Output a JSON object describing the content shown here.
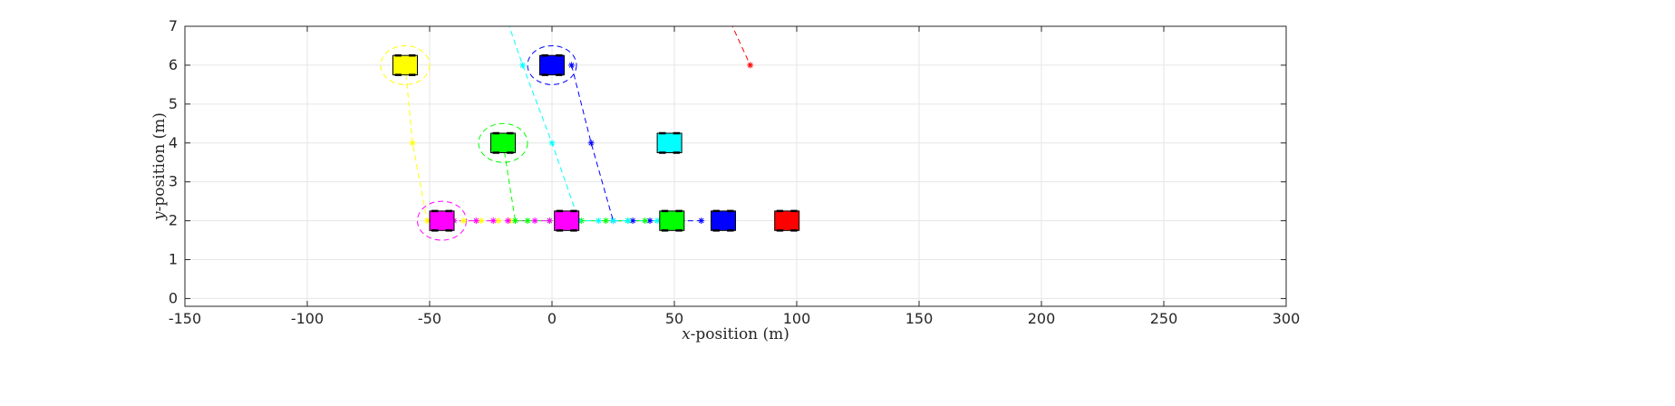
{
  "chart_data": {
    "type": "scatter",
    "title": "",
    "xlabel": {
      "var": "x",
      "rest": "-position (m)"
    },
    "ylabel": {
      "var": "y",
      "rest": "-position (m)"
    },
    "xlim": [
      -150,
      300
    ],
    "ylim": [
      -0.2,
      7
    ],
    "xticks": [
      -150,
      -100,
      -50,
      0,
      50,
      100,
      150,
      200,
      250,
      300
    ],
    "yticks": [
      0,
      1,
      2,
      3,
      4,
      5,
      6,
      7
    ],
    "grid": true,
    "vehicles": [
      {
        "id": "yellow-start",
        "color": "#ffff00",
        "x": -60,
        "y": 6
      },
      {
        "id": "blue-start",
        "color": "#0000ff",
        "x": 0,
        "y": 6
      },
      {
        "id": "green-start",
        "color": "#00ff00",
        "x": -20,
        "y": 4
      },
      {
        "id": "cyan-parked",
        "color": "#00ffff",
        "x": 48,
        "y": 4
      },
      {
        "id": "magenta-a",
        "color": "#ff00ff",
        "x": -45,
        "y": 2
      },
      {
        "id": "magenta-b",
        "color": "#ff00ff",
        "x": 6,
        "y": 2
      },
      {
        "id": "green-lane",
        "color": "#00ff00",
        "x": 49,
        "y": 2
      },
      {
        "id": "blue-lane",
        "color": "#0000ff",
        "x": 70,
        "y": 2
      },
      {
        "id": "red-lane",
        "color": "#ff0000",
        "x": 96,
        "y": 2
      }
    ],
    "safety_circles": [
      {
        "color": "#ffff00",
        "x": -60,
        "y": 6
      },
      {
        "color": "#0000ff",
        "x": 0,
        "y": 6
      },
      {
        "color": "#00ff00",
        "x": -20,
        "y": 4
      },
      {
        "color": "#ff00ff",
        "x": -45,
        "y": 2
      }
    ],
    "trajectories": [
      {
        "name": "yellow",
        "color": "#ffff00",
        "points": [
          [
            -60,
            6
          ],
          [
            -57,
            4
          ],
          [
            -51,
            2
          ],
          [
            -47,
            2
          ],
          [
            -42,
            2
          ],
          [
            -36,
            2
          ],
          [
            -29,
            2
          ],
          [
            -22,
            2
          ],
          [
            -17,
            2
          ]
        ]
      },
      {
        "name": "blue",
        "color": "#0000ff",
        "points": [
          [
            8,
            6
          ],
          [
            16,
            4
          ],
          [
            25,
            2
          ],
          [
            33,
            2
          ],
          [
            40,
            2
          ],
          [
            47,
            2
          ],
          [
            53,
            2
          ],
          [
            61,
            2
          ]
        ]
      },
      {
        "name": "green",
        "color": "#00ff00",
        "points": [
          [
            -20,
            4
          ],
          [
            -15,
            2
          ],
          [
            -10,
            2
          ],
          [
            -1,
            2
          ],
          [
            12,
            2
          ],
          [
            22,
            2
          ],
          [
            31,
            2
          ],
          [
            38,
            2
          ],
          [
            45,
            2
          ],
          [
            52,
            2
          ]
        ]
      },
      {
        "name": "cyan",
        "color": "#00ffff",
        "points": [
          [
            -18,
            7.1
          ],
          [
            -12,
            6
          ],
          [
            0,
            4
          ],
          [
            11,
            2
          ],
          [
            19,
            2
          ],
          [
            25,
            2
          ],
          [
            31,
            2
          ],
          [
            43,
            2
          ]
        ]
      },
      {
        "name": "magenta",
        "color": "#ff00ff",
        "points": [
          [
            -49,
            2
          ],
          [
            -44,
            2
          ],
          [
            -40,
            2
          ],
          [
            -31,
            2
          ],
          [
            -24,
            2
          ],
          [
            -18,
            2
          ],
          [
            -7,
            2
          ],
          [
            -1,
            2
          ]
        ]
      },
      {
        "name": "red",
        "color": "#ff0000",
        "points": [
          [
            73,
            7.1
          ],
          [
            81,
            6
          ]
        ]
      }
    ]
  }
}
